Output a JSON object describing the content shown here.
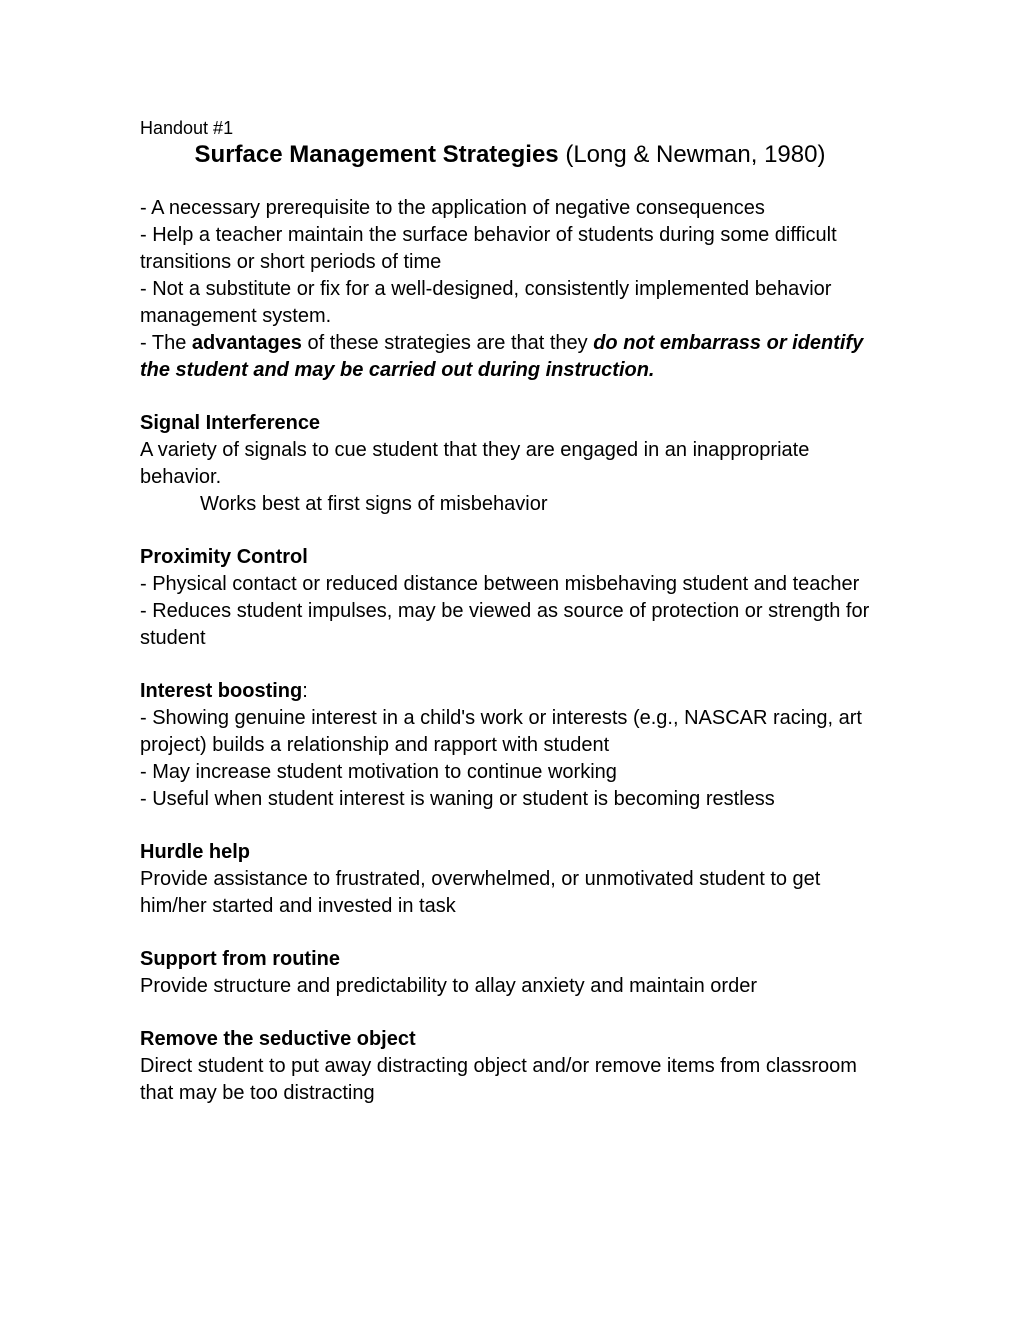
{
  "handout_label": "Handout #1",
  "title": {
    "main": "Surface Management Strategies",
    "citation": " (Long & Newman, 1980)"
  },
  "intro": {
    "line1": "- A necessary prerequisite to the application of negative consequences",
    "line2": "- Help a teacher maintain the surface behavior of students during some difficult transitions or short periods of time",
    "line3": "- Not a substitute or fix for a well-designed, consistently implemented behavior management system.",
    "line4_prefix": "- The ",
    "line4_bold": "advantages",
    "line4_mid": " of these strategies are that they ",
    "line4_emph": "do not embarrass or identify the student and may be carried out during instruction."
  },
  "sections": {
    "signal": {
      "heading": "Signal Interference",
      "body": "A variety of signals to cue student that they are engaged in an inappropriate behavior.",
      "indent": "Works best at first signs of misbehavior"
    },
    "proximity": {
      "heading": "Proximity Control",
      "b1": "- Physical contact or reduced distance between misbehaving student and teacher",
      "b2": "- Reduces student impulses, may be viewed as source of protection or strength for student"
    },
    "interest": {
      "heading": "Interest boosting",
      "colon": ":",
      "b1": "- Showing genuine interest in a child's work or interests (e.g., NASCAR racing, art project) builds a relationship and rapport with student",
      "b2": "- May increase student motivation to continue working",
      "b3": "- Useful when student interest is waning or student is becoming restless"
    },
    "hurdle": {
      "heading": "Hurdle help",
      "body": "Provide assistance to frustrated, overwhelmed, or unmotivated student to get him/her started and invested in task"
    },
    "routine": {
      "heading": "Support from routine",
      "body": "Provide structure and predictability to allay anxiety and maintain order"
    },
    "seductive": {
      "heading": "Remove the seductive object",
      "body": "Direct student to put away distracting object and/or remove items from classroom that may be too distracting"
    }
  }
}
